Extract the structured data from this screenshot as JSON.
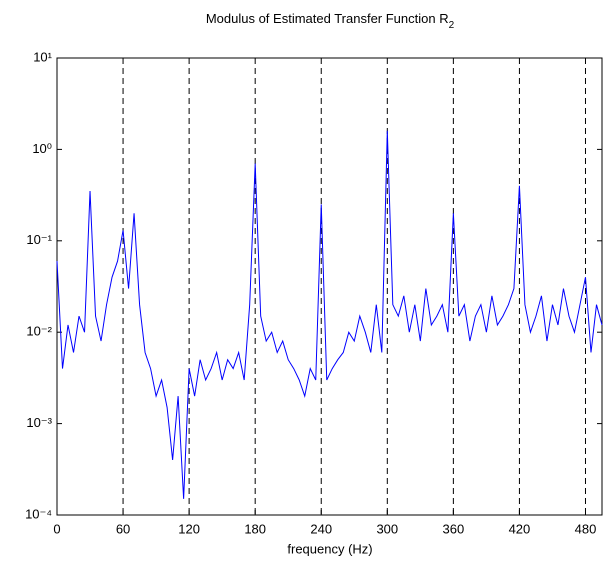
{
  "chart_data": {
    "type": "line",
    "title": "Modulus of Estimated Transfer Function R",
    "title_subscript": "2",
    "x_label": "frequency (Hz)",
    "x": [
      0,
      5,
      10,
      15,
      20,
      25,
      30,
      35,
      40,
      45,
      50,
      55,
      60,
      65,
      70,
      75,
      80,
      85,
      90,
      95,
      100,
      105,
      110,
      115,
      120,
      125,
      130,
      135,
      140,
      145,
      150,
      155,
      160,
      165,
      170,
      175,
      180,
      185,
      190,
      195,
      200,
      205,
      210,
      215,
      220,
      225,
      230,
      235,
      240,
      245,
      250,
      255,
      260,
      265,
      270,
      275,
      280,
      285,
      290,
      295,
      300,
      305,
      310,
      315,
      320,
      325,
      330,
      335,
      340,
      345,
      350,
      355,
      360,
      365,
      370,
      375,
      380,
      385,
      390,
      395,
      400,
      405,
      410,
      415,
      420,
      425,
      430,
      435,
      440,
      445,
      450,
      455,
      460,
      465,
      470,
      475,
      480,
      485,
      490,
      495
    ],
    "series": [
      {
        "color": "#0000ff",
        "values": [
          0.06,
          0.004,
          0.012,
          0.006,
          0.015,
          0.01,
          0.35,
          0.015,
          0.008,
          0.02,
          0.04,
          0.06,
          0.13,
          0.03,
          0.2,
          0.02,
          0.006,
          0.004,
          0.002,
          0.003,
          0.0015,
          0.0004,
          0.002,
          0.00015,
          0.004,
          0.002,
          0.005,
          0.003,
          0.004,
          0.006,
          0.003,
          0.005,
          0.004,
          0.006,
          0.003,
          0.02,
          0.7,
          0.015,
          0.008,
          0.01,
          0.006,
          0.008,
          0.005,
          0.004,
          0.003,
          0.002,
          0.004,
          0.003,
          0.25,
          0.003,
          0.004,
          0.005,
          0.006,
          0.01,
          0.008,
          0.015,
          0.01,
          0.006,
          0.02,
          0.006,
          1.6,
          0.02,
          0.015,
          0.025,
          0.01,
          0.02,
          0.008,
          0.03,
          0.012,
          0.015,
          0.02,
          0.01,
          0.2,
          0.015,
          0.02,
          0.008,
          0.015,
          0.02,
          0.01,
          0.025,
          0.012,
          0.015,
          0.02,
          0.03,
          0.4,
          0.02,
          0.01,
          0.015,
          0.025,
          0.008,
          0.02,
          0.012,
          0.03,
          0.015,
          0.01,
          0.02,
          0.04,
          0.006,
          0.02,
          0.012
        ]
      }
    ],
    "xlim": [
      0,
      495
    ],
    "xticks": [
      0,
      60,
      120,
      180,
      240,
      300,
      360,
      420,
      480
    ],
    "ylim": [
      0.0001,
      10
    ],
    "ylog": true,
    "yticks": [
      {
        "value": 0.0001,
        "label": "10⁻⁴"
      },
      {
        "value": 0.001,
        "label": "10⁻³"
      },
      {
        "value": 0.01,
        "label": "10⁻²"
      },
      {
        "value": 0.1,
        "label": "10⁻¹"
      },
      {
        "value": 1,
        "label": "10⁰"
      },
      {
        "value": 10,
        "label": "10¹"
      }
    ],
    "xgrid": true
  }
}
